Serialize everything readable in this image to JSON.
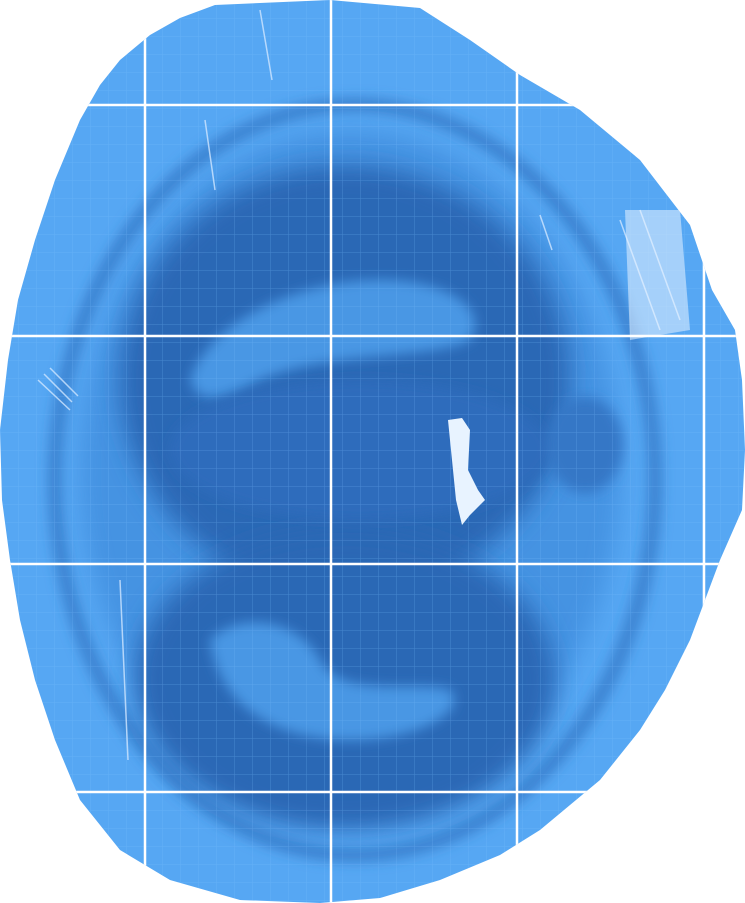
{
  "image": {
    "kind": "tiled tissue section scan",
    "colors": {
      "background": "#ffffff",
      "tissue_light": "#56a7f3",
      "tissue_mid": "#3a86d6",
      "tissue_dark": "#2b67b5",
      "tissue_rim": "#2f72c0",
      "tile_seam": "#ffffff",
      "artifact": "#e8f3ff"
    },
    "tiles": {
      "columns": 4,
      "rows": 4
    }
  }
}
